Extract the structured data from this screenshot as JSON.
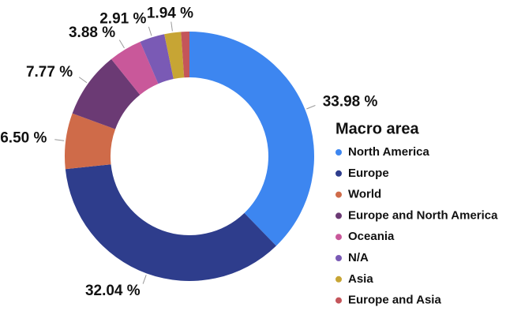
{
  "chart_data": {
    "type": "donut",
    "legend_title": "Macro area",
    "categories": [
      "North America",
      "Europe",
      "World",
      "Europe and North America",
      "Oceania",
      "N/A",
      "Asia",
      "Europe and Asia"
    ],
    "values": [
      33.98,
      32.04,
      6.5,
      7.77,
      3.88,
      2.91,
      1.94,
      0.97
    ],
    "value_labels": [
      "33.98 %",
      "32.04 %",
      "6.50 %",
      "7.77 %",
      "3.88 %",
      "2.91 %",
      "1.94 %",
      null
    ],
    "colors": [
      "#3d86f0",
      "#2e3d8c",
      "#cf6b49",
      "#6b3a74",
      "#c9589a",
      "#7a5ab5",
      "#c7a534",
      "#c4555a"
    ],
    "legend": "right"
  }
}
